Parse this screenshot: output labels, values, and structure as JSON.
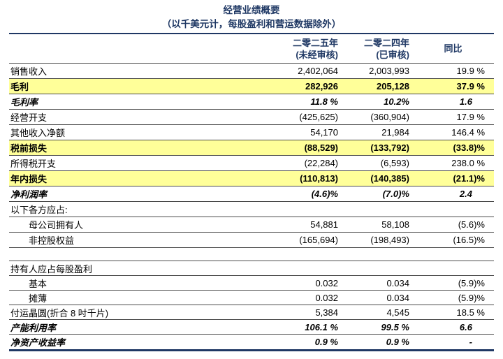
{
  "title": "经营业绩概要",
  "subtitle": "（以千美元计，每股盈利和营运数据除外）",
  "colors": {
    "accent_navy": "#1F3864",
    "highlight_yellow": "#FFFF99"
  },
  "columns": {
    "y2025": {
      "line1": "二零二五年",
      "line2": "(未经审核)"
    },
    "y2024": {
      "line1": "二零二四年",
      "line2": "(已审核)"
    },
    "yoy": "同比"
  },
  "rows": [
    {
      "label": "销售收入",
      "v2025": "2,402,064",
      "v2024": "2,003,993",
      "yoy": "19.9 %"
    },
    {
      "label": "毛利",
      "v2025": "282,926",
      "v2024": "205,128",
      "yoy": "37.9 %"
    },
    {
      "label": "毛利率",
      "v2025": "11.8 %",
      "v2024": "10.2%",
      "yoy": "1.6"
    },
    {
      "label": "经营开支",
      "v2025": "(425,625)",
      "v2024": "(360,904)",
      "yoy": "17.9 %"
    },
    {
      "label": "其他收入净额",
      "v2025": "54,170",
      "v2024": "21,984",
      "yoy": "146.4 %"
    },
    {
      "label": "税前损失",
      "v2025": "(88,529)",
      "v2024": "(133,792)",
      "yoy": "(33.8)%"
    },
    {
      "label": "所得税开支",
      "v2025": "(22,284)",
      "v2024": "(6,593)",
      "yoy": "238.0 %"
    },
    {
      "label": "年内损失",
      "v2025": "(110,813)",
      "v2024": "(140,385)",
      "yoy": "(21.1)%"
    },
    {
      "label": "净利润率",
      "v2025": "(4.6)%",
      "v2024": "(7.0)%",
      "yoy": "2.4"
    },
    {
      "label": "以下各方应占:",
      "v2025": "",
      "v2024": "",
      "yoy": ""
    },
    {
      "label": "母公司拥有人",
      "v2025": "54,881",
      "v2024": "58,108",
      "yoy": "(5.6)%"
    },
    {
      "label": "非控股权益",
      "v2025": "(165,694)",
      "v2024": "(198,493)",
      "yoy": "(16.5)%"
    },
    {
      "label": "",
      "v2025": "",
      "v2024": "",
      "yoy": ""
    },
    {
      "label": "持有人应占每股盈利",
      "v2025": "",
      "v2024": "",
      "yoy": ""
    },
    {
      "label": "基本",
      "v2025": "0.032",
      "v2024": "0.034",
      "yoy": "(5.9)%"
    },
    {
      "label": "摊薄",
      "v2025": "0.032",
      "v2024": "0.034",
      "yoy": "(5.9)%"
    },
    {
      "label": "付运晶圆(折合 8 吋千片)",
      "v2025": "5,384",
      "v2024": "4,545",
      "yoy": "18.5 %"
    },
    {
      "label": "产能利用率",
      "v2025": "106.1 %",
      "v2024": "99.5 %",
      "yoy": "6.6"
    },
    {
      "label": "净资产收益率",
      "v2025": "0.9 %",
      "v2024": "0.9 %",
      "yoy": "-"
    }
  ]
}
